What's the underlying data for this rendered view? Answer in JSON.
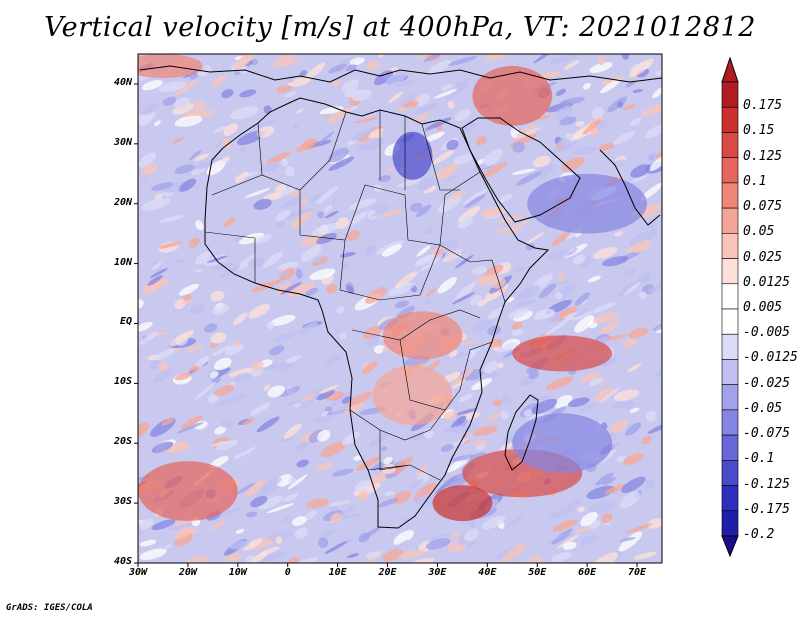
{
  "title": "Vertical velocity [m/s] at 400hPa, VT: 2021012812",
  "credit": "GrADS: IGES/COLA",
  "map": {
    "region": "Africa",
    "lon_range": [
      -30,
      75
    ],
    "lat_range": [
      -40,
      45
    ],
    "lat_ticks": [
      "40N",
      "30N",
      "20N",
      "10N",
      "EQ",
      "10S",
      "20S",
      "30S",
      "40S"
    ],
    "lat_values": [
      40,
      30,
      20,
      10,
      0,
      -10,
      -20,
      -30,
      -40
    ],
    "lon_ticks": [
      "30W",
      "20W",
      "10W",
      "0",
      "10E",
      "20E",
      "30E",
      "40E",
      "50E",
      "60E",
      "70E"
    ],
    "lon_values": [
      -30,
      -20,
      -10,
      0,
      10,
      20,
      30,
      40,
      50,
      60,
      70
    ]
  },
  "colorbar": {
    "labels": [
      "0.175",
      "0.15",
      "0.125",
      "0.1",
      "0.075",
      "0.05",
      "0.025",
      "0.0125",
      "0.005",
      "-0.005",
      "-0.0125",
      "-0.025",
      "-0.05",
      "-0.075",
      "-0.1",
      "-0.125",
      "-0.175",
      "-0.2"
    ],
    "colors": [
      "#b01c22",
      "#c9302e",
      "#d94a44",
      "#e6655c",
      "#ef8576",
      "#f5a596",
      "#fac4b8",
      "#fde0d8",
      "#ffffff",
      "#ffffff",
      "#dcdcf8",
      "#bfbff2",
      "#a2a2ea",
      "#8585e2",
      "#6767d8",
      "#4a4acc",
      "#2e2ebd",
      "#1e1ea8"
    ]
  }
}
